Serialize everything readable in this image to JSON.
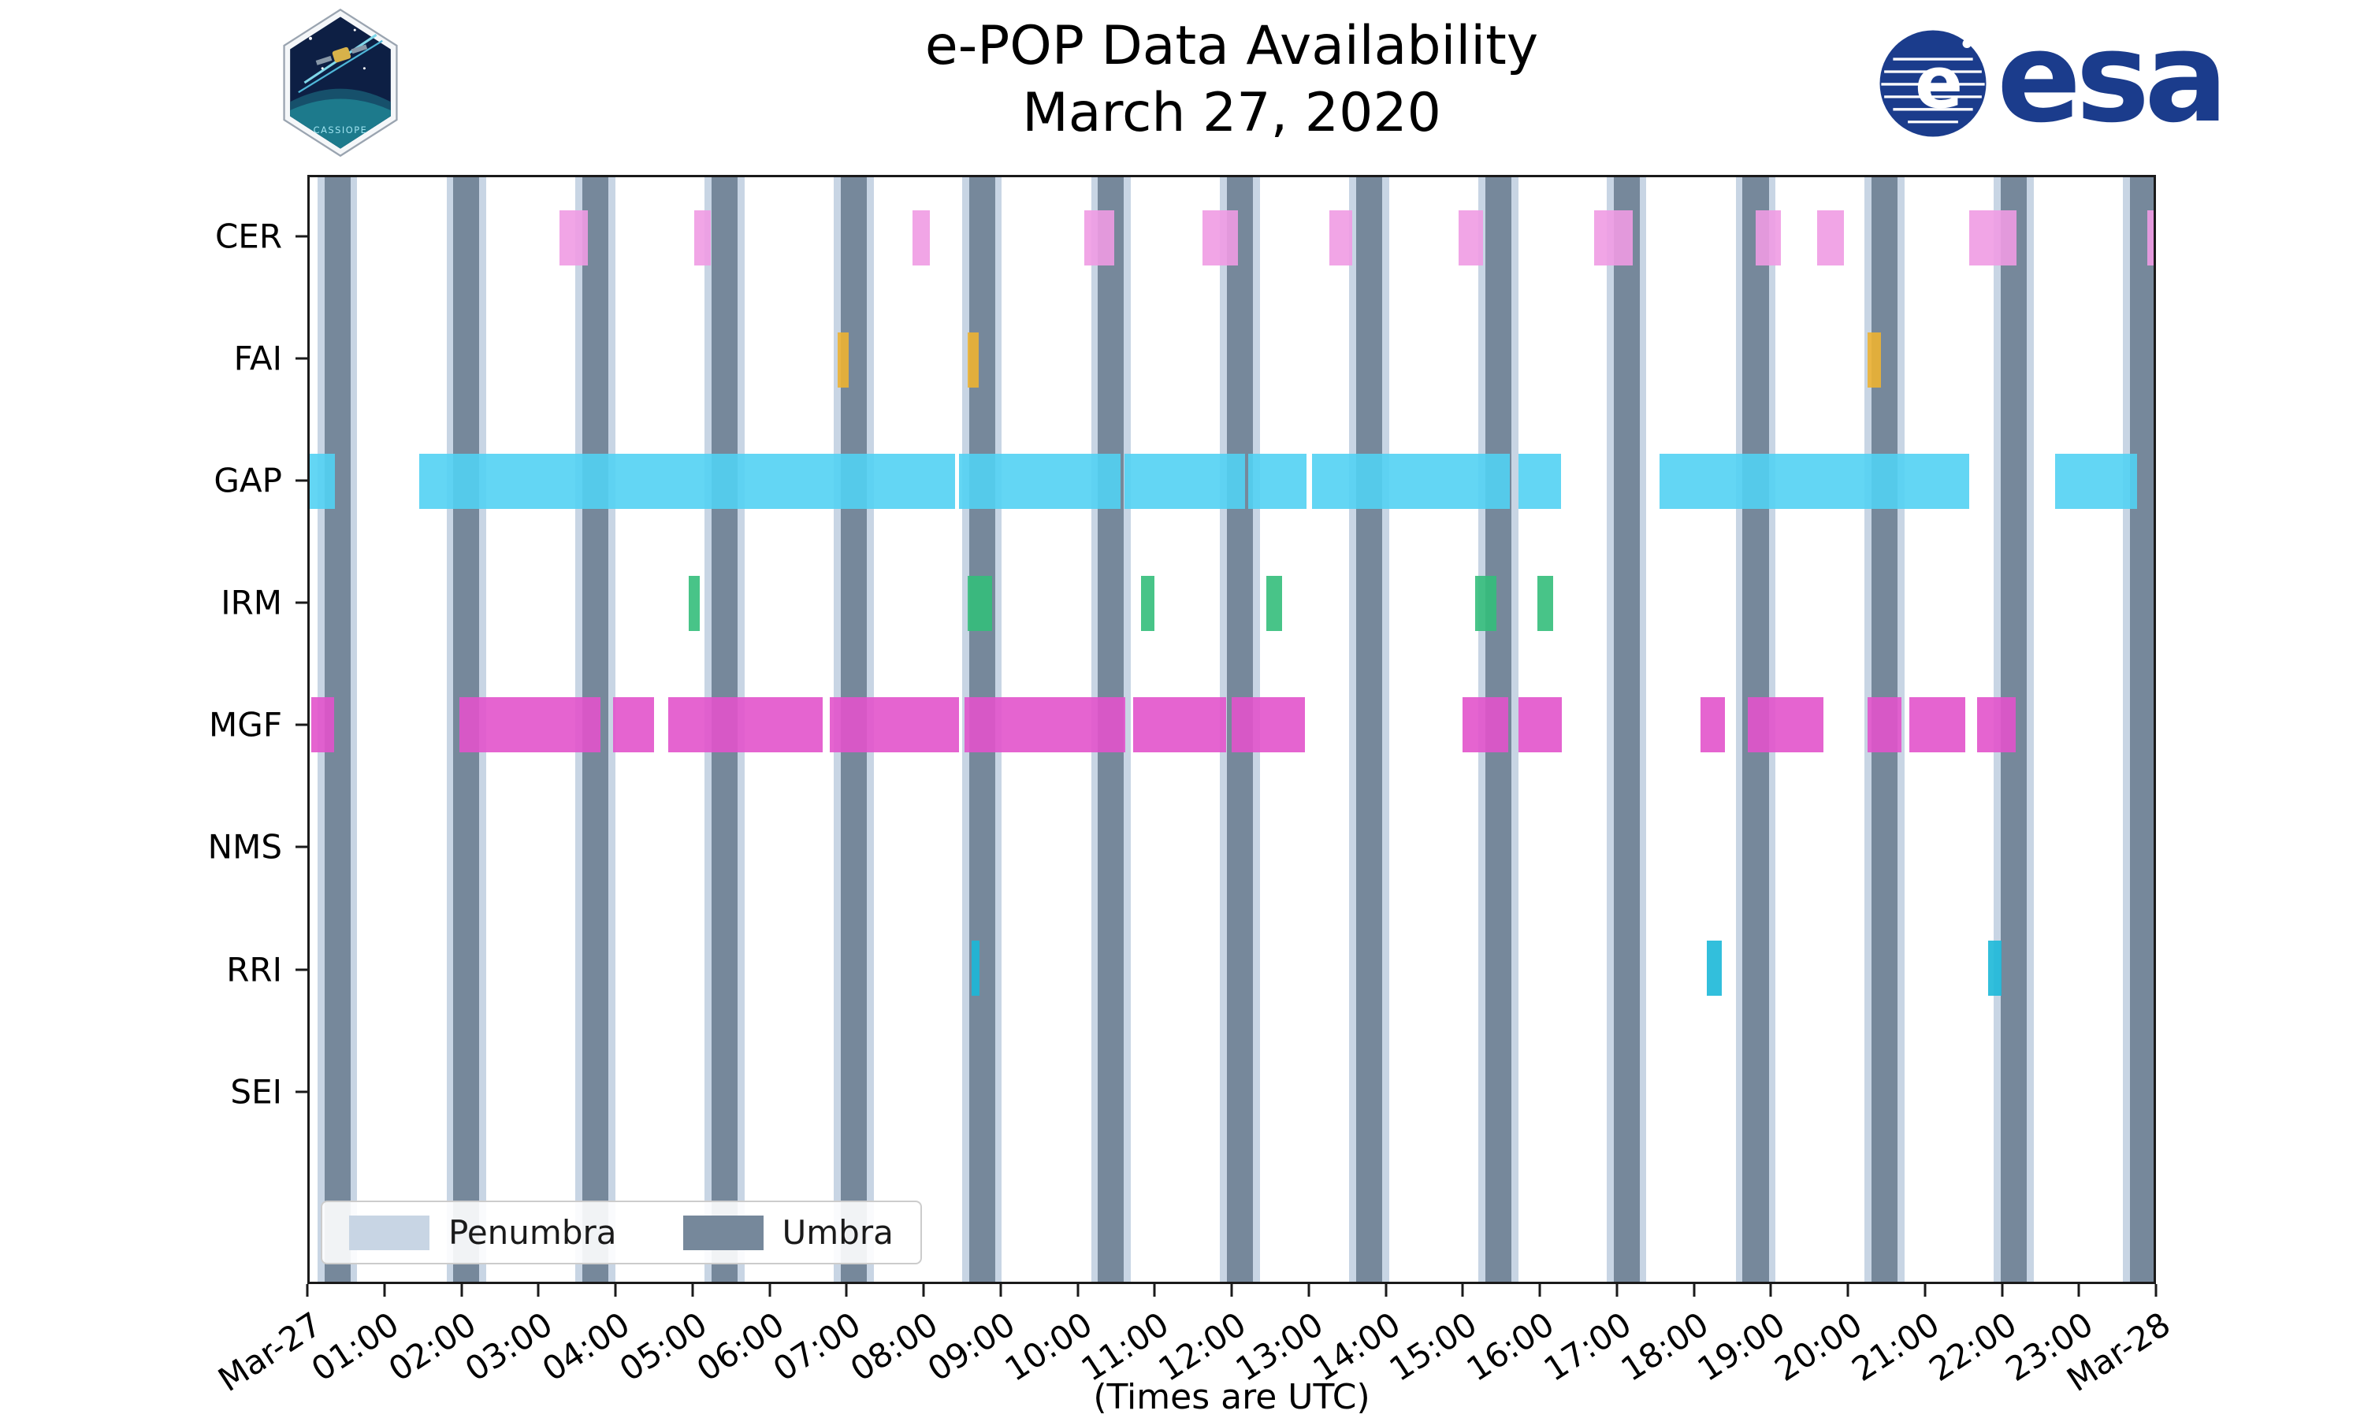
{
  "header": {
    "title": "e-POP Data Availability",
    "subtitle": "March 27, 2020"
  },
  "footer": {
    "caption": "(Times are UTC)"
  },
  "logos": {
    "cassiope_text": "CASSIOPE",
    "esa_text": "esa",
    "esa_blue": "#1b3c8c"
  },
  "chart_data": {
    "type": "timeline",
    "title": "e-POP Data Availability",
    "subtitle": "March 27, 2020",
    "xlabel": "(Times are UTC)",
    "grid": false,
    "legend_position": "lower-left-inside",
    "x_axis": {
      "start_hour": 0,
      "end_hour": 24,
      "tick_interval_hours": 1,
      "tick_labels": [
        "Mar-27",
        "01:00",
        "02:00",
        "03:00",
        "04:00",
        "05:00",
        "06:00",
        "07:00",
        "08:00",
        "09:00",
        "10:00",
        "11:00",
        "12:00",
        "13:00",
        "14:00",
        "15:00",
        "16:00",
        "17:00",
        "18:00",
        "19:00",
        "20:00",
        "21:00",
        "22:00",
        "23:00",
        "Mar-28"
      ]
    },
    "rows": [
      "CER",
      "FAI",
      "GAP",
      "IRM",
      "MGF",
      "NMS",
      "RRI",
      "SEI"
    ],
    "layout": {
      "row_offset_pct": 5.51,
      "row_spacing_pct": 11.02,
      "bar_height_pct": 5.0
    },
    "shading": {
      "penumbra_color": "#c8d5e4",
      "umbra_color": "#76889b",
      "penumbra_pad_hours": 0.09
    },
    "umbra_intervals": [
      [
        0.19,
        0.53
      ],
      [
        1.87,
        2.21
      ],
      [
        3.55,
        3.89
      ],
      [
        5.23,
        5.57
      ],
      [
        6.91,
        7.25
      ],
      [
        8.58,
        8.92
      ],
      [
        10.26,
        10.6
      ],
      [
        11.94,
        12.28
      ],
      [
        13.62,
        13.96
      ],
      [
        15.3,
        15.64
      ],
      [
        16.97,
        17.31
      ],
      [
        18.65,
        18.99
      ],
      [
        20.33,
        20.67
      ],
      [
        22.01,
        22.35
      ],
      [
        23.69,
        24.0
      ]
    ],
    "series": [
      {
        "name": "CER",
        "color": "#f09be3",
        "intervals": [
          [
            3.25,
            3.62
          ],
          [
            5.0,
            5.22
          ],
          [
            7.85,
            8.07
          ],
          [
            10.08,
            10.47
          ],
          [
            11.62,
            12.08
          ],
          [
            13.27,
            13.57
          ],
          [
            14.95,
            15.27
          ],
          [
            16.72,
            17.22
          ],
          [
            18.82,
            19.15
          ],
          [
            19.62,
            19.97
          ],
          [
            21.6,
            22.22
          ],
          [
            23.92,
            24.0
          ]
        ]
      },
      {
        "name": "FAI",
        "color": "#edb232",
        "intervals": [
          [
            6.87,
            7.02
          ],
          [
            8.56,
            8.71
          ],
          [
            20.28,
            20.45
          ]
        ]
      },
      {
        "name": "GAP",
        "color": "#52d2f3",
        "intervals": [
          [
            0.0,
            0.33
          ],
          [
            1.43,
            8.4
          ],
          [
            8.45,
            10.55
          ],
          [
            10.6,
            12.17
          ],
          [
            12.22,
            12.97
          ],
          [
            13.05,
            15.62
          ],
          [
            15.73,
            16.29
          ],
          [
            17.57,
            21.6
          ],
          [
            22.72,
            23.78
          ]
        ]
      },
      {
        "name": "IRM",
        "color": "#34be7b",
        "intervals": [
          [
            4.93,
            5.08
          ],
          [
            8.56,
            8.88
          ],
          [
            10.82,
            11.0
          ],
          [
            12.45,
            12.66
          ],
          [
            15.17,
            15.45
          ],
          [
            15.98,
            16.18
          ]
        ]
      },
      {
        "name": "MGF",
        "color": "#e253cb",
        "intervals": [
          [
            0.02,
            0.32
          ],
          [
            1.95,
            3.78
          ],
          [
            3.95,
            4.48
          ],
          [
            4.67,
            6.68
          ],
          [
            6.77,
            8.45
          ],
          [
            8.52,
            10.62
          ],
          [
            10.72,
            11.93
          ],
          [
            12.0,
            12.95
          ],
          [
            15.0,
            15.6
          ],
          [
            15.73,
            16.3
          ],
          [
            18.1,
            18.42
          ],
          [
            18.72,
            19.7
          ],
          [
            20.28,
            20.72
          ],
          [
            20.82,
            21.55
          ],
          [
            21.7,
            22.2
          ]
        ]
      },
      {
        "name": "NMS",
        "color": "#999999",
        "intervals": []
      },
      {
        "name": "RRI",
        "color": "#1cb8d8",
        "intervals": [
          [
            8.62,
            8.72
          ],
          [
            18.18,
            18.38
          ],
          [
            21.85,
            22.02
          ]
        ]
      },
      {
        "name": "SEI",
        "color": "#999999",
        "intervals": []
      }
    ],
    "legend": [
      {
        "label": "Penumbra",
        "color": "#c8d5e4"
      },
      {
        "label": "Umbra",
        "color": "#76889b"
      }
    ]
  }
}
